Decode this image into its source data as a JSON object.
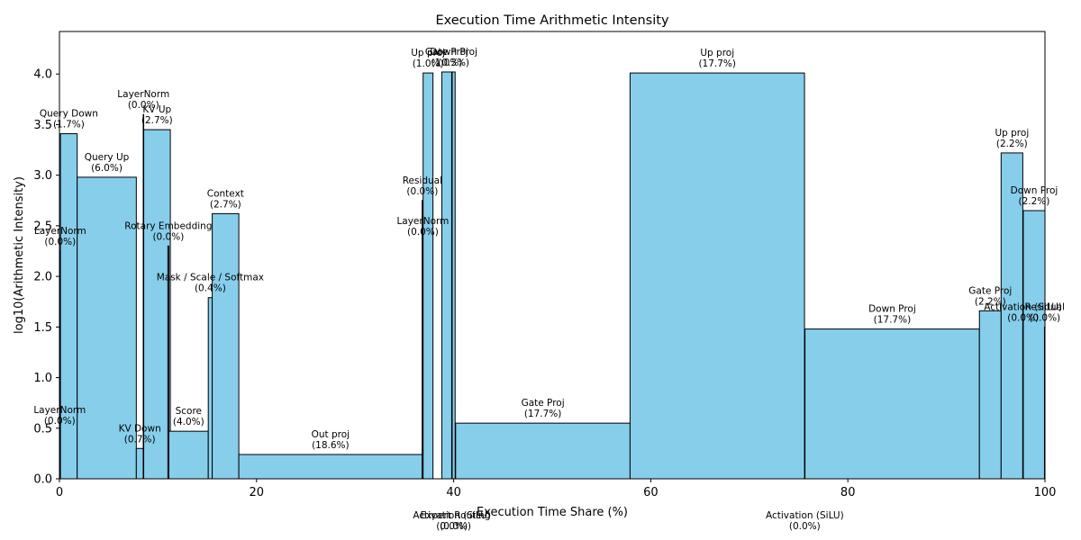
{
  "chart_data": {
    "type": "bar",
    "title": "Execution Time Arithmetic Intensity",
    "xlabel": "Execution Time Share (%)",
    "ylabel": "log10(Arithmetic Intensity)",
    "xlim": [
      0,
      100
    ],
    "ylim": [
      0,
      4.42
    ],
    "xticks": [
      "0",
      "20",
      "40",
      "60",
      "80",
      "100"
    ],
    "yticks": [
      "0.0",
      "0.5",
      "1.0",
      "1.5",
      "2.0",
      "2.5",
      "3.0",
      "3.5",
      "4.0"
    ],
    "grid": false,
    "legend": "none",
    "bar_color": "#87ceeb",
    "bars": [
      {
        "name": "LayerNorm",
        "pct_label": "(0.0%)",
        "x0": 0.0,
        "x1": 0.05,
        "y": 0.48
      },
      {
        "name": "LayerNorm",
        "pct_label": "(0.0%)",
        "x0": 0.05,
        "x1": 0.1,
        "y": 2.25
      },
      {
        "name": "Query Down",
        "pct_label": "(1.7%)",
        "x0": 0.1,
        "x1": 1.8,
        "y": 3.41
      },
      {
        "name": "Query Up",
        "pct_label": "(6.0%)",
        "x0": 1.8,
        "x1": 7.8,
        "y": 2.98
      },
      {
        "name": "KV Down",
        "pct_label": "(0.7%)",
        "x0": 7.8,
        "x1": 8.5,
        "y": 0.3
      },
      {
        "name": "LayerNorm",
        "pct_label": "(0.0%)",
        "x0": 8.5,
        "x1": 8.55,
        "y": 3.6
      },
      {
        "name": "KV Up",
        "pct_label": "(2.7%)",
        "x0": 8.55,
        "x1": 11.25,
        "y": 3.45
      },
      {
        "name": "Rotary Embedding",
        "pct_label": "(0.0%)",
        "x0": 11.0,
        "x1": 11.1,
        "y": 2.3
      },
      {
        "name": "Score",
        "pct_label": "(4.0%)",
        "x0": 11.1,
        "x1": 15.1,
        "y": 0.47
      },
      {
        "name": "Mask / Scale / Softmax",
        "pct_label": "(0.4%)",
        "x0": 15.1,
        "x1": 15.5,
        "y": 1.79
      },
      {
        "name": "Context",
        "pct_label": "(2.7%)",
        "x0": 15.5,
        "x1": 18.2,
        "y": 2.62
      },
      {
        "name": "Out proj",
        "pct_label": "(18.6%)",
        "x0": 18.2,
        "x1": 36.8,
        "y": 0.24
      },
      {
        "name": "Residual",
        "pct_label": "(0.0%)",
        "x0": 36.8,
        "x1": 36.85,
        "y": 2.75
      },
      {
        "name": "LayerNorm",
        "pct_label": "(0.0%)",
        "x0": 36.85,
        "x1": 36.9,
        "y": 2.35
      },
      {
        "name": "Up proj",
        "pct_label": "(1.0%)",
        "x0": 36.9,
        "x1": 37.9,
        "y": 4.01
      },
      {
        "name": "Gate Proj",
        "pct_label": "(1.0%)",
        "x0": 38.8,
        "x1": 39.8,
        "y": 4.02
      },
      {
        "name": "Activation (SiLU)",
        "pct_label": "(0.0%)",
        "x0": 39.8,
        "x1": 39.85,
        "y": 0.0
      },
      {
        "name": "Down Proj",
        "pct_label": "(0.3%)",
        "x0": 39.85,
        "x1": 40.15,
        "y": 4.02
      },
      {
        "name": "Expert Routing",
        "pct_label": "(0.0%)",
        "x0": 40.15,
        "x1": 40.2,
        "y": 0.0
      },
      {
        "name": "Gate Proj",
        "pct_label": "(17.7%)",
        "x0": 40.2,
        "x1": 57.9,
        "y": 0.55
      },
      {
        "name": "Up proj",
        "pct_label": "(17.7%)",
        "x0": 57.9,
        "x1": 75.6,
        "y": 4.01
      },
      {
        "name": "Activation (SiLU)",
        "pct_label": "(0.0%)",
        "x0": 75.6,
        "x1": 75.65,
        "y": 0.0
      },
      {
        "name": "Down Proj",
        "pct_label": "(17.7%)",
        "x0": 75.65,
        "x1": 93.35,
        "y": 1.48
      },
      {
        "name": "Gate Proj",
        "pct_label": "(2.2%)",
        "x0": 93.35,
        "x1": 95.55,
        "y": 1.66
      },
      {
        "name": "Up proj",
        "pct_label": "(2.2%)",
        "x0": 95.55,
        "x1": 97.75,
        "y": 3.22
      },
      {
        "name": "Activation (SiLU)",
        "pct_label": "(0.0%)",
        "x0": 97.75,
        "x1": 97.8,
        "y": 1.5
      },
      {
        "name": "Down Proj",
        "pct_label": "(2.2%)",
        "x0": 97.8,
        "x1": 100.0,
        "y": 2.65
      },
      {
        "name": "Residual",
        "pct_label": "(0.0%)",
        "x0": 99.95,
        "x1": 100.0,
        "y": 1.5
      }
    ]
  }
}
